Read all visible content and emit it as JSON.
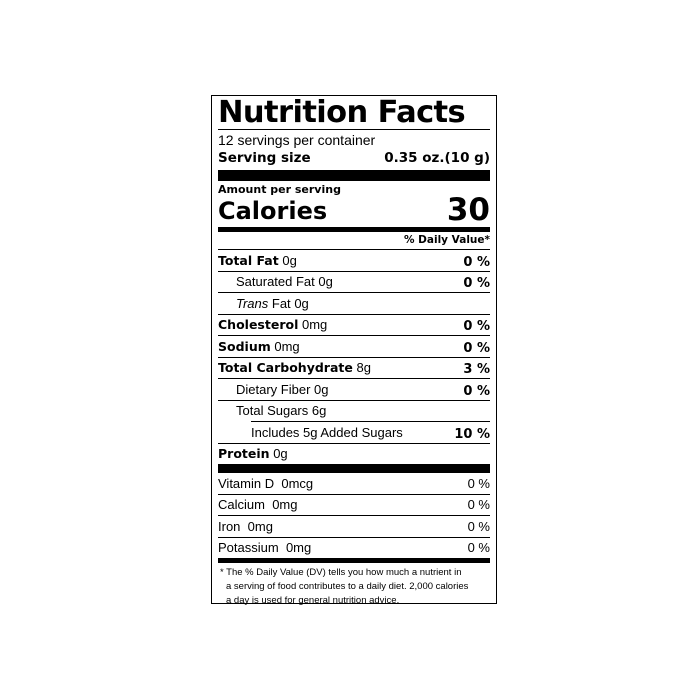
{
  "title": "Nutrition Facts",
  "servings_per_container": "12 servings per container",
  "serving_size": {
    "label": "Serving size",
    "value": "0.35 oz.(10 g)"
  },
  "amount_per_serving": "Amount per serving",
  "calories": {
    "label": "Calories",
    "value": "30"
  },
  "daily_value_header": "% Daily Value*",
  "nutrients": [
    {
      "name": "Total Fat",
      "amount": "0g",
      "dv": "0 %"
    },
    {
      "name": "Saturated Fat",
      "amount": "0g",
      "dv": "0 %"
    },
    {
      "name": "Trans",
      "name_rest": "Fat",
      "amount": "0g",
      "dv": ""
    },
    {
      "name": "Cholesterol",
      "amount": "0mg",
      "dv": "0 %"
    },
    {
      "name": "Sodium",
      "amount": "0mg",
      "dv": "0 %"
    },
    {
      "name": "Total Carbohydrate",
      "amount": "8g",
      "dv": "3 %"
    },
    {
      "name": "Dietary Fiber",
      "amount": "0g",
      "dv": "0 %"
    },
    {
      "name": "Total Sugars",
      "amount": "6g",
      "dv": ""
    },
    {
      "name": "Includes 5g Added Sugars",
      "amount": "",
      "dv": "10 %"
    },
    {
      "name": "Protein",
      "amount": "0g",
      "dv": ""
    }
  ],
  "vitamins": [
    {
      "name": "Vitamin D",
      "amount": "0mcg",
      "dv": "0 %"
    },
    {
      "name": "Calcium",
      "amount": "0mg",
      "dv": "0 %"
    },
    {
      "name": "Iron",
      "amount": "0mg",
      "dv": "0 %"
    },
    {
      "name": "Potassium",
      "amount": "0mg",
      "dv": "0 %"
    }
  ],
  "footnote": [
    "* The % Daily Value (DV) tells you how much a nutrient in",
    "a serving of food contributes to a daily diet. 2,000 calories",
    "a day is used for general nutrition advice."
  ]
}
